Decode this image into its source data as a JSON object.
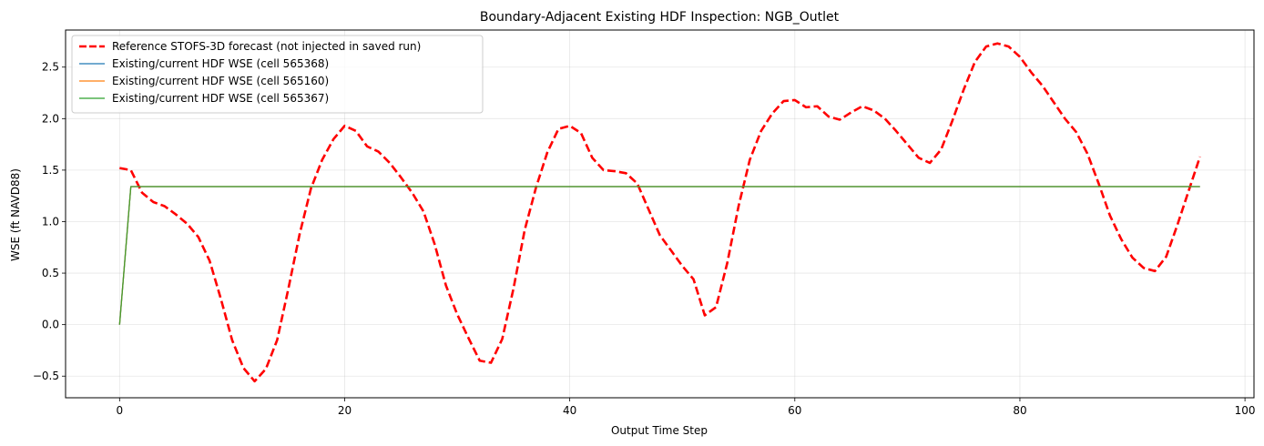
{
  "chart_data": {
    "type": "line",
    "title": "Boundary-Adjacent Existing HDF Inspection: NGB_Outlet",
    "xlabel": "Output Time Step",
    "ylabel": "WSE (ft NAVD88)",
    "xlim": [
      -4.8,
      100.8
    ],
    "ylim": [
      -0.71,
      2.86
    ],
    "xticks": [
      0,
      20,
      40,
      60,
      80,
      100
    ],
    "yticks": [
      -0.5,
      0.0,
      0.5,
      1.0,
      1.5,
      2.0,
      2.5
    ],
    "xtick_labels": [
      "0",
      "20",
      "40",
      "60",
      "80",
      "100"
    ],
    "ytick_labels": [
      "−0.5",
      "0.0",
      "0.5",
      "1.0",
      "1.5",
      "2.0",
      "2.5"
    ],
    "grid": true,
    "legend_position": "top-left",
    "series": [
      {
        "name": "Reference STOFS-3D forecast (not injected in saved run)",
        "color": "#ff0000",
        "style": "dashed",
        "x": [
          0,
          1,
          2,
          3,
          4,
          5,
          6,
          7,
          8,
          9,
          10,
          11,
          12,
          13,
          14,
          15,
          16,
          17,
          18,
          19,
          20,
          21,
          22,
          23,
          24,
          25,
          26,
          27,
          28,
          29,
          30,
          31,
          32,
          33,
          34,
          35,
          36,
          37,
          38,
          39,
          40,
          41,
          42,
          43,
          44,
          45,
          46,
          47,
          48,
          49,
          50,
          51,
          52,
          53,
          54,
          55,
          56,
          57,
          58,
          59,
          60,
          61,
          62,
          63,
          64,
          65,
          66,
          67,
          68,
          69,
          70,
          71,
          72,
          73,
          74,
          75,
          76,
          77,
          78,
          79,
          80,
          81,
          82,
          83,
          84,
          85,
          86,
          87,
          88,
          89,
          90,
          91,
          92,
          93,
          94,
          95,
          96
        ],
        "y": [
          1.52,
          1.5,
          1.28,
          1.19,
          1.15,
          1.07,
          0.98,
          0.85,
          0.62,
          0.25,
          -0.15,
          -0.42,
          -0.55,
          -0.43,
          -0.15,
          0.35,
          0.88,
          1.32,
          1.6,
          1.8,
          1.93,
          1.88,
          1.73,
          1.68,
          1.57,
          1.43,
          1.28,
          1.1,
          0.78,
          0.38,
          0.1,
          -0.13,
          -0.35,
          -0.37,
          -0.14,
          0.35,
          0.92,
          1.33,
          1.67,
          1.9,
          1.93,
          1.86,
          1.62,
          1.5,
          1.49,
          1.47,
          1.37,
          1.12,
          0.87,
          0.72,
          0.57,
          0.44,
          0.09,
          0.17,
          0.6,
          1.15,
          1.6,
          1.88,
          2.05,
          2.17,
          2.18,
          2.11,
          2.12,
          2.02,
          1.99,
          2.06,
          2.12,
          2.08,
          2.0,
          1.88,
          1.75,
          1.62,
          1.57,
          1.7,
          1.98,
          2.28,
          2.55,
          2.7,
          2.73,
          2.7,
          2.6,
          2.45,
          2.32,
          2.16,
          2.0,
          1.87,
          1.66,
          1.37,
          1.06,
          0.83,
          0.65,
          0.55,
          0.52,
          0.66,
          0.97,
          1.3,
          1.63
        ]
      },
      {
        "name": "Existing/current HDF WSE (cell 565368)",
        "color": "#1f77b4",
        "style": "solid",
        "x": [
          0,
          1,
          96
        ],
        "y": [
          0.0,
          1.34,
          1.34
        ]
      },
      {
        "name": "Existing/current HDF WSE (cell 565160)",
        "color": "#ff7f0e",
        "style": "solid",
        "x": [
          0,
          1,
          96
        ],
        "y": [
          0.0,
          1.34,
          1.34
        ]
      },
      {
        "name": "Existing/current HDF WSE (cell 565367)",
        "color": "#2ca02c",
        "style": "solid",
        "x": [
          0,
          1,
          96
        ],
        "y": [
          0.0,
          1.34,
          1.34
        ]
      }
    ]
  }
}
